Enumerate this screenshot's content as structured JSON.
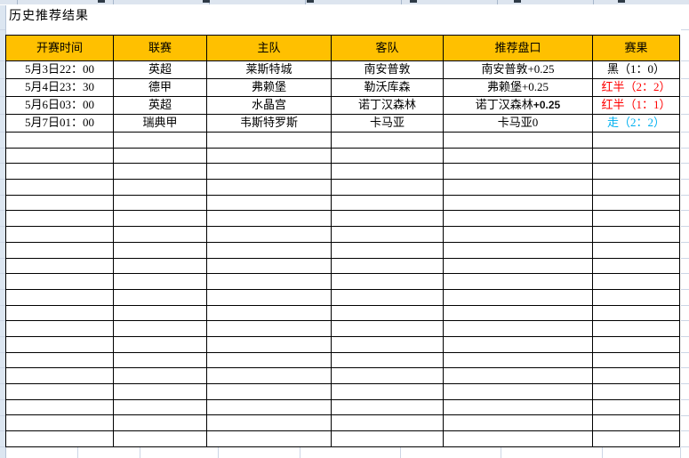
{
  "title": "历史推荐结果",
  "table": {
    "headers": [
      "开赛时间",
      "联赛",
      "主队",
      "客队",
      "推荐盘口",
      "赛果"
    ],
    "rows": [
      {
        "time": "5月3日22：00",
        "league": "英超",
        "home": "莱斯特城",
        "away": "南安普敦",
        "handicap": "南安普敦+0.25",
        "handicap_alt": "",
        "result": "黑（1：0）",
        "result_color": "#000000"
      },
      {
        "time": "5月4日23：30",
        "league": "德甲",
        "home": "弗赖堡",
        "away": "勒沃库森",
        "handicap": "弗赖堡+0.25",
        "handicap_alt": "",
        "result": "红半（2：2）",
        "result_color": "#FF0000"
      },
      {
        "time": "5月6日03：00",
        "league": "英超",
        "home": "水晶宫",
        "away": "诺丁汉森林",
        "handicap": "诺丁汉森林",
        "handicap_alt": "+0.25",
        "result": "红半（1：1）",
        "result_color": "#FF0000"
      },
      {
        "time": "5月7日01：00",
        "league": "瑞典甲",
        "home": "韦斯特罗斯",
        "away": "卡马亚",
        "handicap": "卡马亚0",
        "handicap_alt": "",
        "result": "走（2：2）",
        "result_color": "#00B0F0"
      }
    ],
    "empty_row_count": 20
  },
  "colors": {
    "header_bg": "#FFC000",
    "table_border": "#000000",
    "result_red": "#FF0000",
    "result_blue": "#00B0F0",
    "result_black": "#000000",
    "panel_bg": "#DCE6F1",
    "gridline": "#CCD6E5"
  }
}
